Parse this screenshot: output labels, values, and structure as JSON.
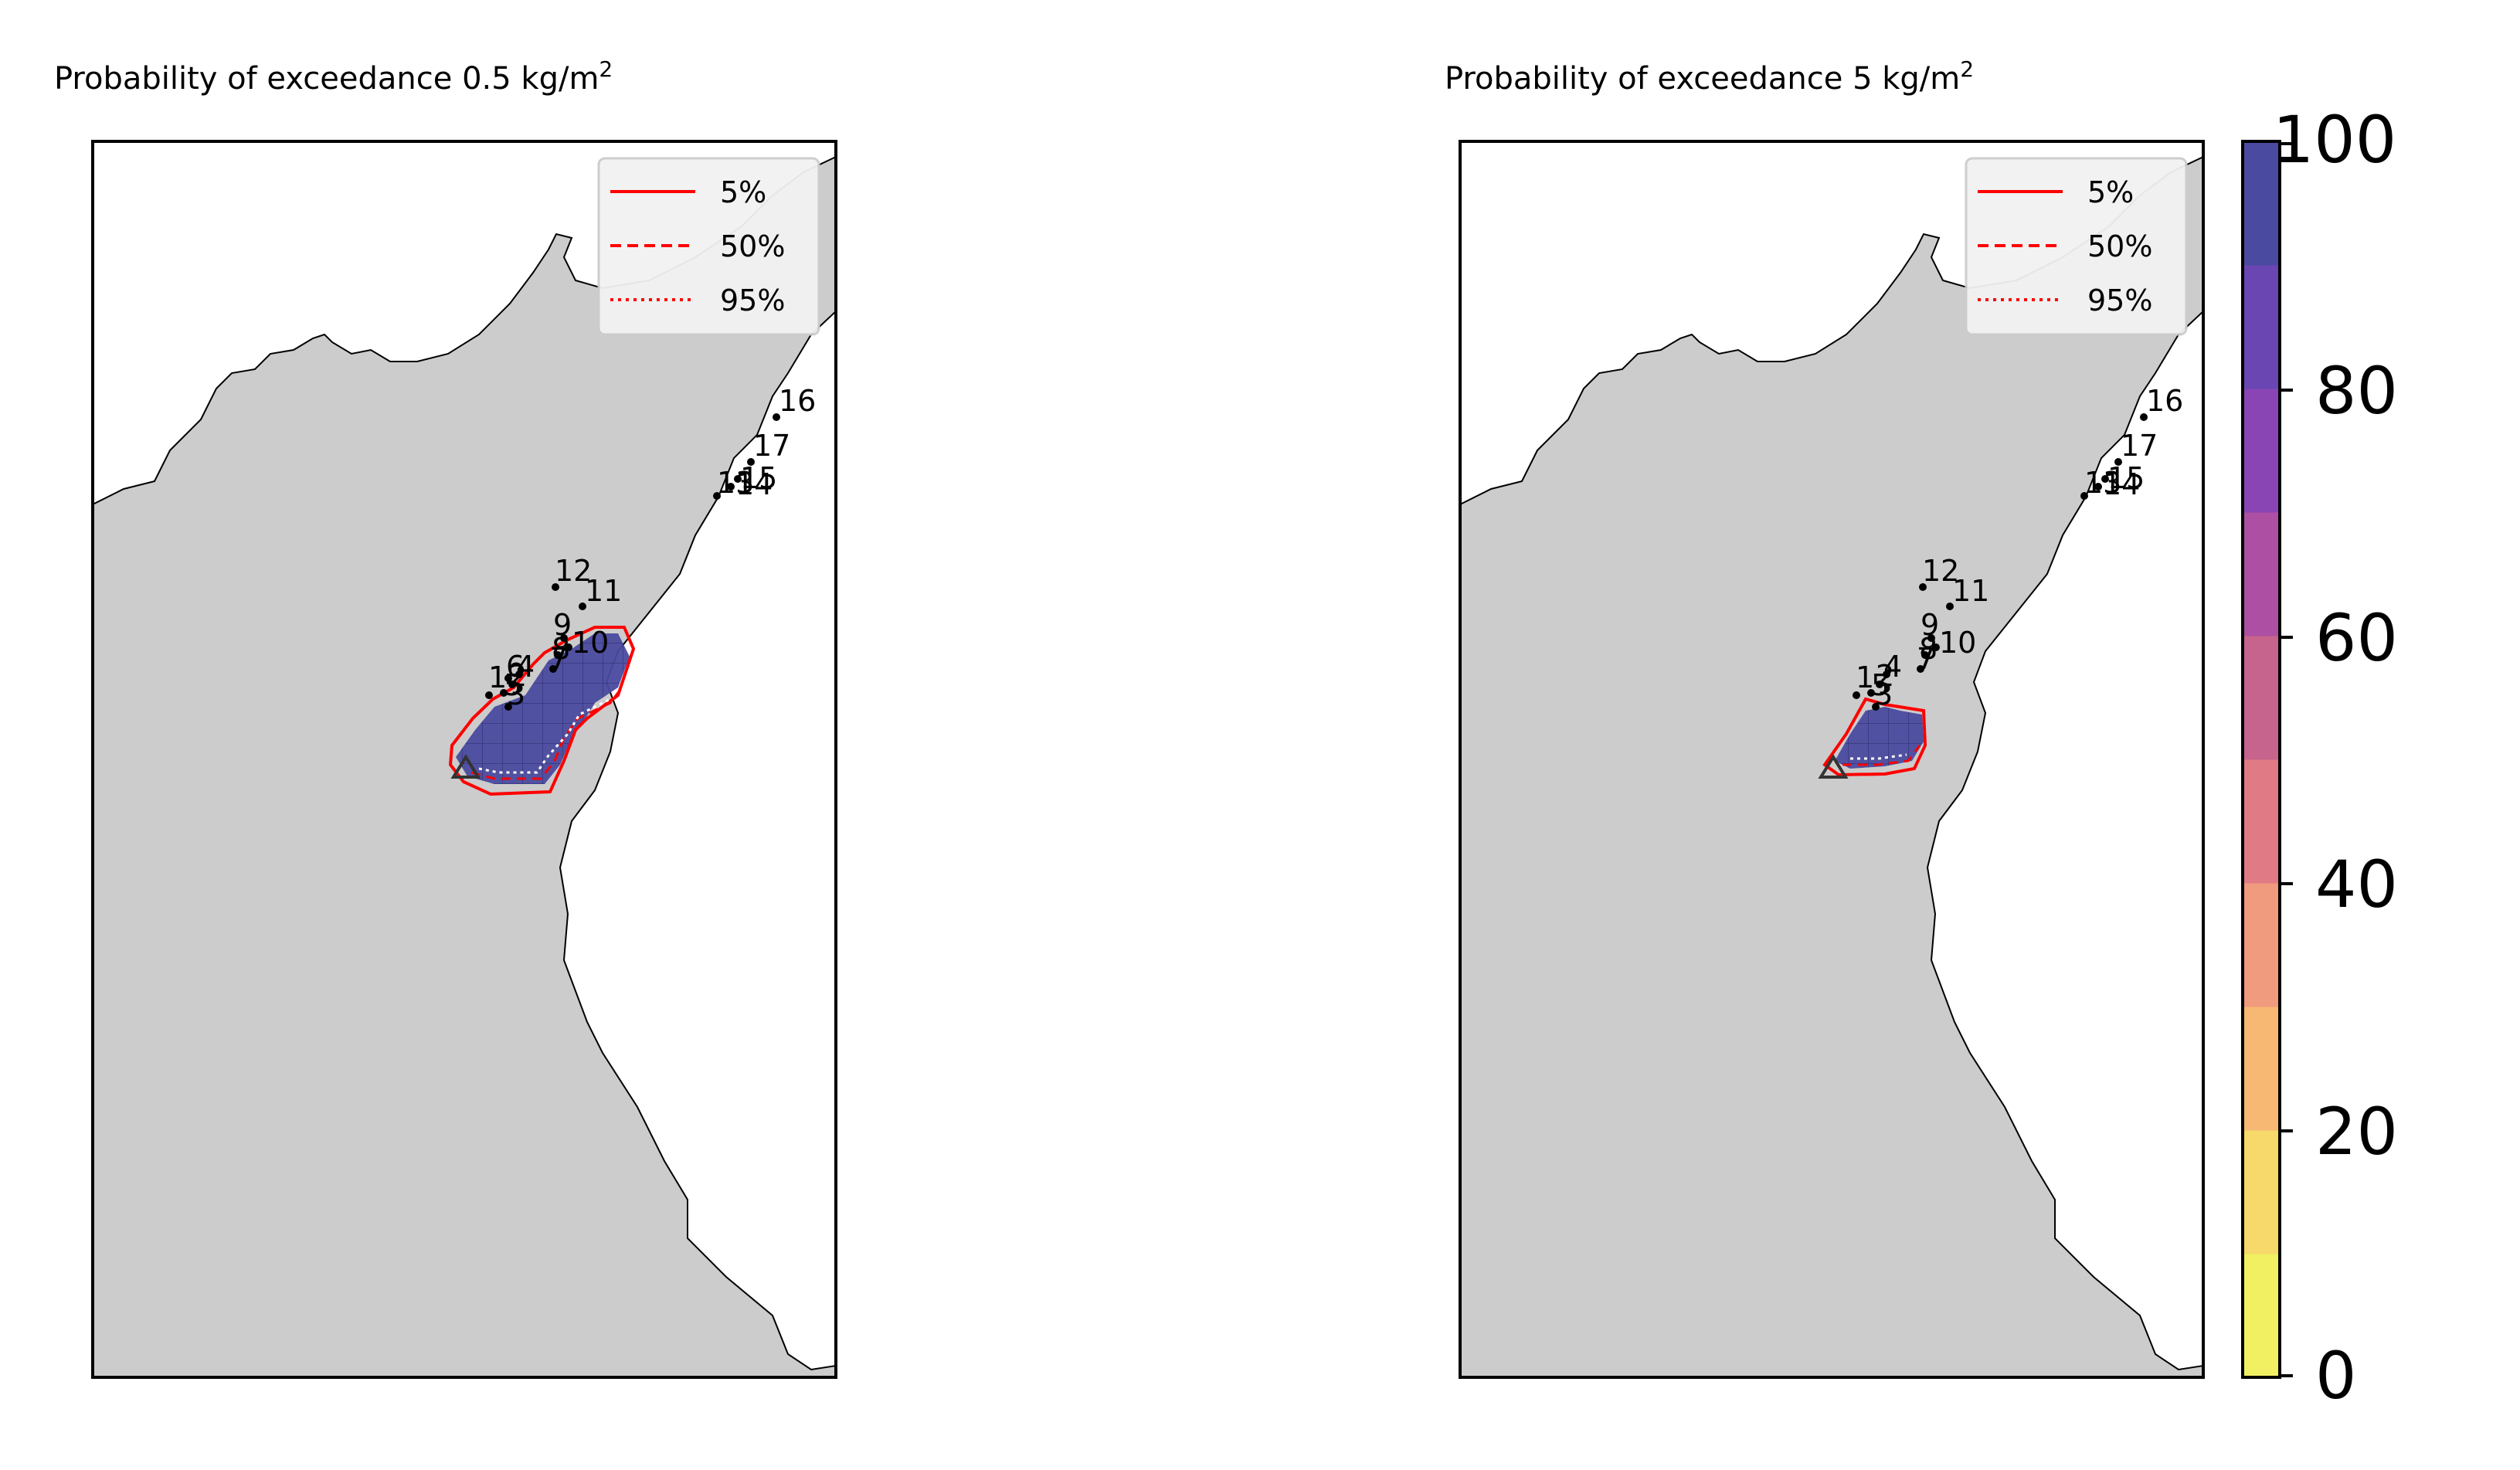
{
  "panels": [
    {
      "id": "left",
      "title": "Probability of exceedance 0.5 kg/m",
      "title_sup": "2",
      "legend": [
        {
          "label": "5%",
          "style": "solid"
        },
        {
          "label": "50%",
          "style": "dashed"
        },
        {
          "label": "95%",
          "style": "dotted"
        }
      ],
      "stations": [
        {
          "label": "16"
        },
        {
          "label": "17"
        },
        {
          "label": "15"
        },
        {
          "label": "14"
        },
        {
          "label": "13"
        },
        {
          "label": "12"
        },
        {
          "label": "11"
        },
        {
          "label": "9"
        },
        {
          "label": "10"
        },
        {
          "label": "8"
        },
        {
          "label": "7"
        },
        {
          "label": "4"
        },
        {
          "label": "2"
        },
        {
          "label": "1"
        },
        {
          "label": "5"
        },
        {
          "label": "3"
        },
        {
          "label": "6"
        }
      ],
      "vent_symbol": "triangle-icon",
      "plume_probability": 100
    },
    {
      "id": "right",
      "title": "Probability of exceedance 5 kg/m",
      "title_sup": "2",
      "legend": [
        {
          "label": "5%",
          "style": "solid"
        },
        {
          "label": "50%",
          "style": "dashed"
        },
        {
          "label": "95%",
          "style": "dotted"
        }
      ],
      "stations": [
        {
          "label": "16"
        },
        {
          "label": "17"
        },
        {
          "label": "15"
        },
        {
          "label": "14"
        },
        {
          "label": "13"
        },
        {
          "label": "12"
        },
        {
          "label": "11"
        },
        {
          "label": "9"
        },
        {
          "label": "10"
        },
        {
          "label": "8"
        },
        {
          "label": "7"
        },
        {
          "label": "4"
        },
        {
          "label": "2"
        },
        {
          "label": "1"
        },
        {
          "label": "5"
        },
        {
          "label": "3"
        }
      ],
      "vent_symbol": "triangle-icon",
      "plume_probability": 100
    }
  ],
  "colorbar": {
    "ticks": [
      "100",
      "80",
      "60",
      "40",
      "20",
      "0"
    ],
    "range": [
      0,
      100
    ],
    "colors": [
      "#f0f062",
      "#f7d86a",
      "#f6b872",
      "#f09a7e",
      "#e07a84",
      "#c7648d",
      "#ad4fa2",
      "#8a45b4",
      "#6a46b2",
      "#4a4aa0"
    ]
  },
  "colors": {
    "land": "#cccccc",
    "sea": "#ffffff",
    "contour": "#ff0000",
    "plume": "#4a4aa0"
  }
}
